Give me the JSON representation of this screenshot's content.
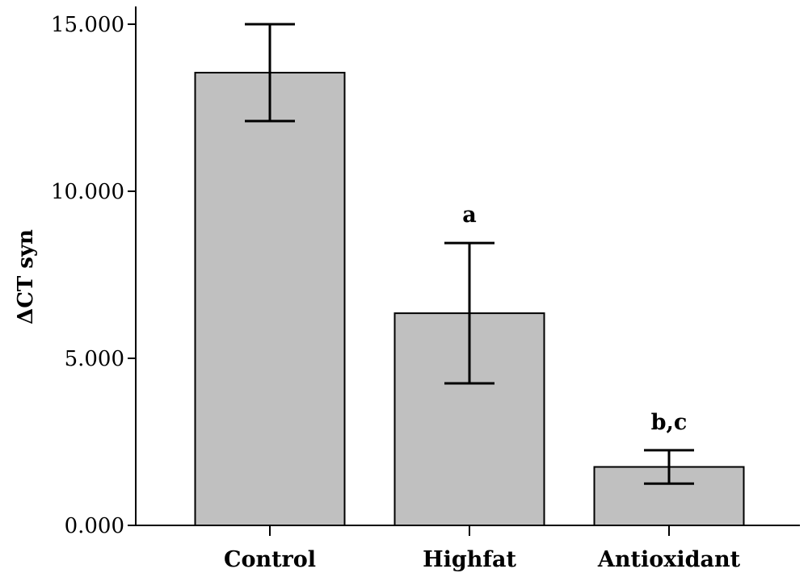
{
  "chart_data": {
    "type": "bar",
    "title": "",
    "xlabel": "",
    "ylabel": "ΔCT syn",
    "categories": [
      "Control",
      "Highfat",
      "Antioxidant"
    ],
    "values": [
      13.55,
      6.35,
      1.75
    ],
    "error_low": [
      12.1,
      4.25,
      1.25
    ],
    "error_high": [
      15.0,
      8.45,
      2.25
    ],
    "annotations": [
      "",
      "a",
      "b,c"
    ],
    "ylim": [
      0,
      15.5
    ],
    "yticks": [
      0,
      5,
      10,
      15
    ],
    "ytick_labels": [
      "0.000",
      "5.000",
      "10.000",
      "15.000"
    ],
    "grid": false,
    "legend": "none",
    "bar_color": "#c0c0c0",
    "bar_edge_color": "#000000"
  }
}
